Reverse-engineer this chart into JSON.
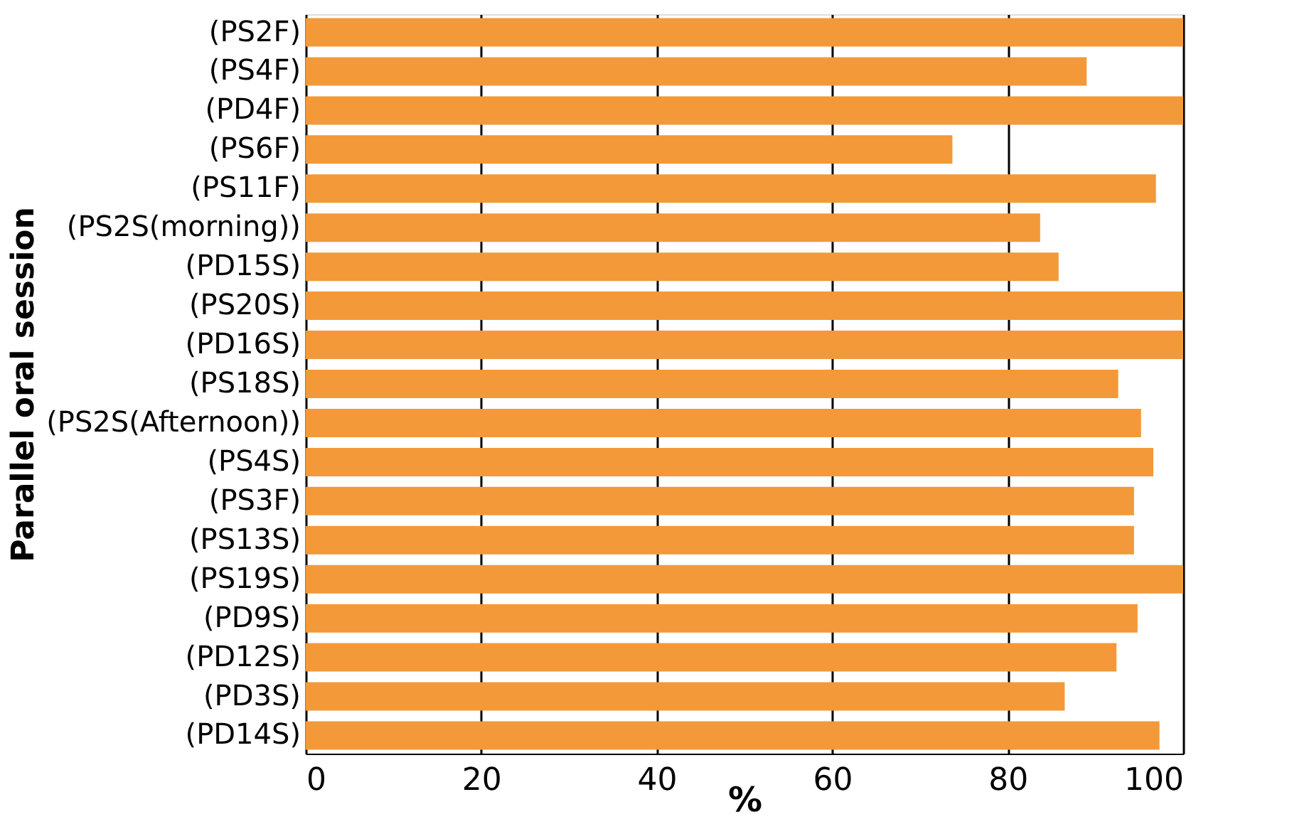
{
  "chart_data": {
    "type": "bar",
    "orientation": "horizontal",
    "xlabel": "%",
    "ylabel": "Parallel oral session",
    "categories": [
      "(PS2F)",
      "(PS4F)",
      "(PD4F)",
      "(PS6F)",
      "(PS11F)",
      "(PS2S(morning))",
      "(PD15S)",
      "(PS20S)",
      "(PD16S)",
      "(PS18S)",
      "(PS2S(Afternoon))",
      "(PS4S)",
      "(PS3F)",
      "(PS13S)",
      "(PS19S)",
      "(PD9S)",
      "(PD12S)",
      "(PD3S)",
      "(PD14S)"
    ],
    "values": [
      100,
      89.0,
      100,
      73.7,
      96.9,
      83.7,
      85.8,
      100,
      100,
      92.6,
      95.2,
      96.6,
      94.4,
      94.4,
      100,
      94.8,
      92.4,
      86.5,
      97.3
    ],
    "color": "#f39939",
    "xlim": [
      0,
      100
    ],
    "xticks": [
      0,
      20,
      40,
      60,
      80,
      100
    ],
    "grid": "x"
  }
}
